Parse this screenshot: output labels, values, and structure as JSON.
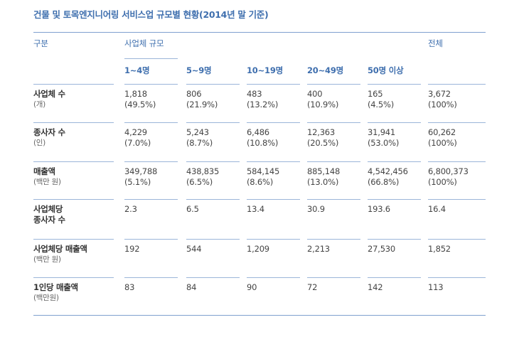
{
  "title": "건물 및 토목엔지니어링 서비스업 규모별 현황(2014년 말 기준)",
  "headers": {
    "category": "구분",
    "size_group": "사업체 규모",
    "total": "전체",
    "sizes": [
      "1~4명",
      "5~9명",
      "10~19명",
      "20~49명",
      "50명 이상"
    ]
  },
  "rows": [
    {
      "label": "사업체 수",
      "unit": "(개)",
      "values": [
        "1,818",
        "806",
        "483",
        "400",
        "165",
        "3,672"
      ],
      "pcts": [
        "(49.5%)",
        "(21.9%)",
        "(13.2%)",
        "(10.9%)",
        "(4.5%)",
        "(100%)"
      ]
    },
    {
      "label": "종사자 수",
      "unit": "(인)",
      "values": [
        "4,229",
        "5,243",
        "6,486",
        "12,363",
        "31,941",
        "60,262"
      ],
      "pcts": [
        "(7.0%)",
        "(8.7%)",
        "(10.8%)",
        "(20.5%)",
        "(53.0%)",
        "(100%)"
      ]
    },
    {
      "label": "매출액",
      "unit": "(백만 원)",
      "values": [
        "349,788",
        "438,835",
        "584,145",
        "885,148",
        "4,542,456",
        "6,800,373"
      ],
      "pcts": [
        "(5.1%)",
        "(6.5%)",
        "(8.6%)",
        "(13.0%)",
        "(66.8%)",
        "(100%)"
      ]
    },
    {
      "label": "사업체당",
      "label2": "종사자 수",
      "values": [
        "2.3",
        "6.5",
        "13.4",
        "30.9",
        "193.6",
        "16.4"
      ]
    },
    {
      "label": "사업체당 매출액",
      "unit": "(백만 원)",
      "values": [
        "192",
        "544",
        "1,209",
        "2,213",
        "27,530",
        "1,852"
      ]
    },
    {
      "label": "1인당 매출액",
      "unit": "(백만원)",
      "values": [
        "83",
        "84",
        "90",
        "72",
        "142",
        "113"
      ]
    }
  ]
}
